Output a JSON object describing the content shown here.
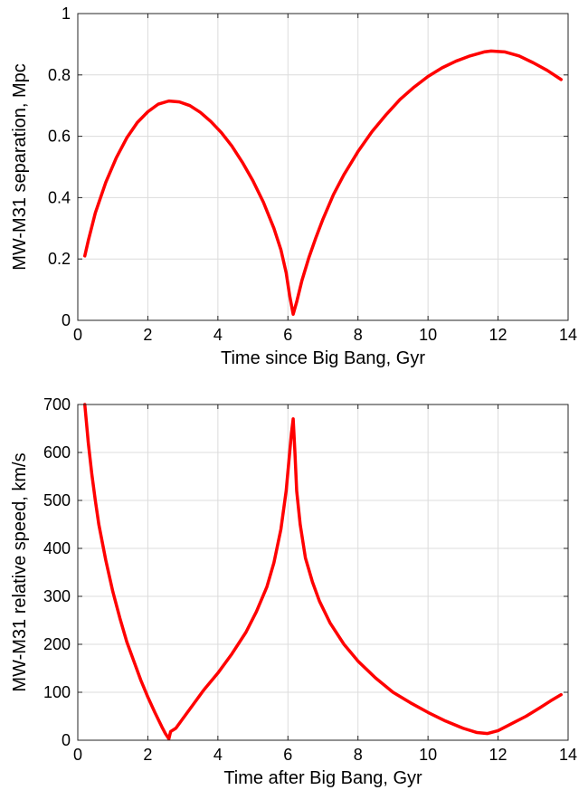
{
  "chart_data": [
    {
      "type": "line",
      "title": "",
      "xlabel": "Time since Big Bang, Gyr",
      "ylabel": "MW-M31 separation, Mpc",
      "xlim": [
        0,
        14
      ],
      "ylim": [
        0,
        1
      ],
      "xticks": [
        0,
        2,
        4,
        6,
        8,
        10,
        12,
        14
      ],
      "yticks": [
        0,
        0.2,
        0.4,
        0.6,
        0.8,
        1
      ],
      "grid": true,
      "line_color": "#ff0000",
      "series": [
        {
          "x": [
            0.2,
            0.3,
            0.5,
            0.8,
            1.1,
            1.4,
            1.7,
            2.0,
            2.3,
            2.6,
            2.9,
            3.2,
            3.5,
            3.8,
            4.1,
            4.4,
            4.7,
            5.0,
            5.3,
            5.6,
            5.8,
            5.95,
            6.05,
            6.15,
            6.25,
            6.4,
            6.6,
            6.8,
            7.0,
            7.3,
            7.6,
            8.0,
            8.4,
            8.8,
            9.2,
            9.6,
            10.0,
            10.4,
            10.8,
            11.2,
            11.6,
            11.8,
            12.2,
            12.6,
            13.0,
            13.4,
            13.8
          ],
          "y": [
            0.21,
            0.26,
            0.35,
            0.45,
            0.53,
            0.595,
            0.645,
            0.68,
            0.705,
            0.715,
            0.712,
            0.7,
            0.678,
            0.648,
            0.612,
            0.568,
            0.515,
            0.455,
            0.385,
            0.3,
            0.23,
            0.155,
            0.08,
            0.02,
            0.06,
            0.13,
            0.205,
            0.27,
            0.33,
            0.41,
            0.475,
            0.55,
            0.615,
            0.67,
            0.72,
            0.76,
            0.795,
            0.823,
            0.845,
            0.862,
            0.875,
            0.878,
            0.875,
            0.862,
            0.84,
            0.815,
            0.785
          ]
        }
      ]
    },
    {
      "type": "line",
      "title": "",
      "xlabel": "Time after Big Bang, Gyr",
      "ylabel": "MW-M31 relative speed, km/s",
      "xlim": [
        0,
        14
      ],
      "ylim": [
        0,
        700
      ],
      "xticks": [
        0,
        2,
        4,
        6,
        8,
        10,
        12,
        14
      ],
      "yticks": [
        0,
        100,
        200,
        300,
        400,
        500,
        600,
        700
      ],
      "grid": true,
      "line_color": "#ff0000",
      "series": [
        {
          "x": [
            0.2,
            0.3,
            0.4,
            0.5,
            0.6,
            0.8,
            1.0,
            1.2,
            1.4,
            1.6,
            1.8,
            2.0,
            2.2,
            2.4,
            2.5,
            2.6,
            2.65,
            2.8,
            3.0,
            3.3,
            3.6,
            4.0,
            4.4,
            4.8,
            5.1,
            5.4,
            5.6,
            5.8,
            5.95,
            6.05,
            6.1,
            6.15,
            6.2,
            6.25,
            6.35,
            6.5,
            6.7,
            6.9,
            7.2,
            7.6,
            8.0,
            8.5,
            9.0,
            9.5,
            10.0,
            10.5,
            11.0,
            11.4,
            11.7,
            12.0,
            12.4,
            12.8,
            13.2,
            13.5,
            13.8
          ],
          "y": [
            700,
            620,
            555,
            500,
            450,
            375,
            310,
            255,
            205,
            165,
            125,
            90,
            58,
            28,
            14,
            3,
            18,
            25,
            45,
            75,
            105,
            140,
            180,
            225,
            268,
            320,
            370,
            440,
            520,
            600,
            640,
            670,
            600,
            520,
            450,
            380,
            330,
            290,
            245,
            200,
            165,
            130,
            100,
            78,
            58,
            40,
            25,
            16,
            14,
            20,
            35,
            50,
            68,
            82,
            95
          ]
        }
      ]
    }
  ]
}
